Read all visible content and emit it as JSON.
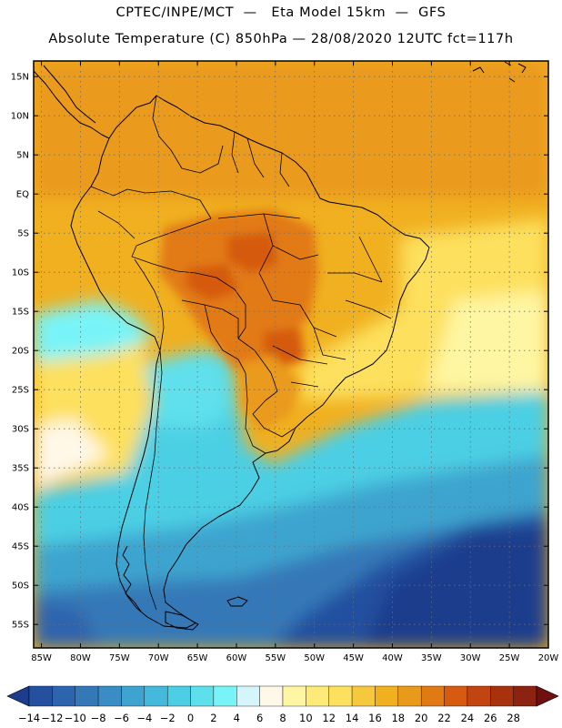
{
  "header": {
    "line1": "CPTEC/INPE/MCT  —   Eta Model 15km  —  GFS",
    "line2": "Absolute Temperature (C) 850hPa — 28/08/2020 12UTC fct=117h"
  },
  "map": {
    "lat_labels": [
      "15N",
      "10N",
      "5N",
      "EQ",
      "5S",
      "10S",
      "15S",
      "20S",
      "25S",
      "30S",
      "35S",
      "40S",
      "45S",
      "50S",
      "55S"
    ],
    "lat_values": [
      15,
      10,
      5,
      0,
      -5,
      -10,
      -15,
      -20,
      -25,
      -30,
      -35,
      -40,
      -45,
      -50,
      -55
    ],
    "lon_labels": [
      "85W",
      "80W",
      "75W",
      "70W",
      "65W",
      "60W",
      "55W",
      "50W",
      "45W",
      "40W",
      "35W",
      "30W",
      "25W",
      "20W"
    ],
    "lon_values": [
      -85,
      -80,
      -75,
      -70,
      -65,
      -60,
      -55,
      -50,
      -45,
      -40,
      -35,
      -30,
      -25,
      -20
    ],
    "lon_range": [
      -86,
      -20
    ],
    "lat_range": [
      -58,
      17
    ]
  },
  "colorbar": {
    "labels": [
      "-14",
      "-12",
      "-10",
      "-8",
      "-6",
      "-4",
      "-2",
      "0",
      "2",
      "4",
      "6",
      "8",
      "10",
      "12",
      "14",
      "16",
      "18",
      "20",
      "22",
      "24",
      "26",
      "28"
    ],
    "colors": [
      "#1e3c8c",
      "#24509f",
      "#2d64ae",
      "#3478b8",
      "#3a8cc4",
      "#3ea4cf",
      "#44b9db",
      "#4ccfe4",
      "#5ee0ec",
      "#78f4f8",
      "#d4f6fb",
      "#fff8e8",
      "#fff6a3",
      "#feea79",
      "#fde05d",
      "#f6c83e",
      "#f0b020",
      "#ea9a1a",
      "#e27a14",
      "#d65a10",
      "#c24410",
      "#a8320e",
      "#8c2210",
      "#6e1010"
    ]
  },
  "colors": {
    "land_outline": "#000000",
    "grid": "#6e6e6e"
  }
}
